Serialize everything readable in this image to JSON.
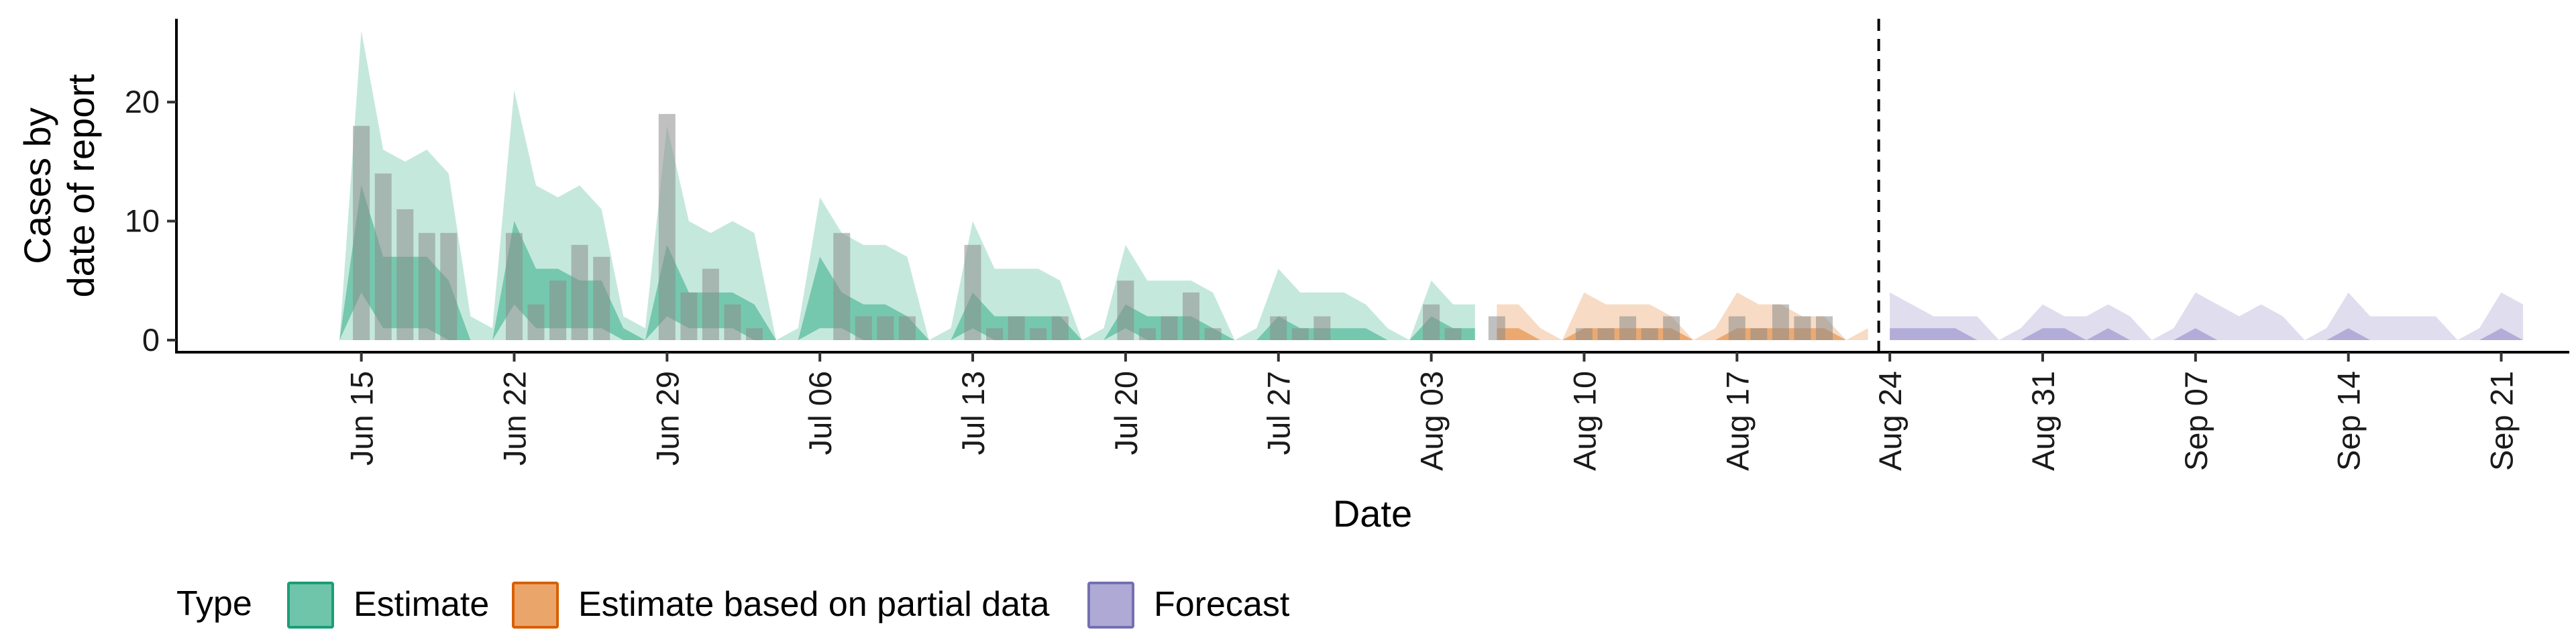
{
  "chart_data": {
    "type": "area",
    "xlabel": "Date",
    "ylabel_lines": [
      "Cases by",
      "date of report"
    ],
    "ylim": [
      0,
      27
    ],
    "yticks": [
      0,
      10,
      20
    ],
    "x_start_date": "2020-06-12",
    "x_end_date": "2020-09-22",
    "x_tick_labels": [
      "Jun 15",
      "Jun 22",
      "Jun 29",
      "Jul 06",
      "Jul 13",
      "Jul 20",
      "Jul 27",
      "Aug 03",
      "Aug 10",
      "Aug 17",
      "Aug 24",
      "Aug 31",
      "Sep 07",
      "Sep 14",
      "Sep 21"
    ],
    "x_tick_dates": [
      "2020-06-15",
      "2020-06-22",
      "2020-06-29",
      "2020-07-06",
      "2020-07-13",
      "2020-07-20",
      "2020-07-27",
      "2020-08-03",
      "2020-08-10",
      "2020-08-17",
      "2020-08-24",
      "2020-08-31",
      "2020-09-07",
      "2020-09-14",
      "2020-09-21"
    ],
    "forecast_line_date": "2020-08-23",
    "legend": {
      "title": "Type",
      "position": "bottom",
      "entries": [
        {
          "name": "Estimate",
          "fill": "#66c2a5",
          "stroke": "#1b9e77"
        },
        {
          "name": "Estimate based on partial data",
          "fill": "#e9a063",
          "stroke": "#d95f02"
        },
        {
          "name": "Forecast",
          "fill": "#aaa5d3",
          "stroke": "#7570b3"
        }
      ]
    },
    "grid": false,
    "observed_cases": {
      "dates": [
        "2020-06-15",
        "2020-06-16",
        "2020-06-17",
        "2020-06-18",
        "2020-06-19",
        "2020-06-22",
        "2020-06-23",
        "2020-06-24",
        "2020-06-25",
        "2020-06-26",
        "2020-06-29",
        "2020-06-30",
        "2020-07-01",
        "2020-07-02",
        "2020-07-03",
        "2020-07-07",
        "2020-07-08",
        "2020-07-09",
        "2020-07-10",
        "2020-07-13",
        "2020-07-14",
        "2020-07-15",
        "2020-07-16",
        "2020-07-17",
        "2020-07-20",
        "2020-07-21",
        "2020-07-22",
        "2020-07-23",
        "2020-07-24",
        "2020-07-27",
        "2020-07-28",
        "2020-07-29",
        "2020-08-03",
        "2020-08-04",
        "2020-08-06",
        "2020-08-10",
        "2020-08-11",
        "2020-08-12",
        "2020-08-13",
        "2020-08-14",
        "2020-08-17",
        "2020-08-18",
        "2020-08-19",
        "2020-08-20",
        "2020-08-21"
      ],
      "values": [
        18,
        14,
        11,
        9,
        9,
        9,
        3,
        5,
        8,
        7,
        19,
        4,
        6,
        3,
        1,
        9,
        2,
        2,
        2,
        8,
        1,
        2,
        1,
        2,
        5,
        1,
        2,
        4,
        1,
        2,
        1,
        2,
        3,
        1,
        2,
        1,
        1,
        2,
        1,
        2,
        2,
        1,
        3,
        2,
        2
      ]
    },
    "series": [
      {
        "name": "Estimate",
        "dates": [
          "2020-06-14",
          "2020-06-15",
          "2020-06-16",
          "2020-06-17",
          "2020-06-18",
          "2020-06-19",
          "2020-06-20",
          "2020-06-21",
          "2020-06-22",
          "2020-06-23",
          "2020-06-24",
          "2020-06-25",
          "2020-06-26",
          "2020-06-27",
          "2020-06-28",
          "2020-06-29",
          "2020-06-30",
          "2020-07-01",
          "2020-07-02",
          "2020-07-03",
          "2020-07-04",
          "2020-07-05",
          "2020-07-06",
          "2020-07-07",
          "2020-07-08",
          "2020-07-09",
          "2020-07-10",
          "2020-07-11",
          "2020-07-12",
          "2020-07-13",
          "2020-07-14",
          "2020-07-15",
          "2020-07-16",
          "2020-07-17",
          "2020-07-18",
          "2020-07-19",
          "2020-07-20",
          "2020-07-21",
          "2020-07-22",
          "2020-07-23",
          "2020-07-24",
          "2020-07-25",
          "2020-07-26",
          "2020-07-27",
          "2020-07-28",
          "2020-07-29",
          "2020-07-30",
          "2020-07-31",
          "2020-08-01",
          "2020-08-02",
          "2020-08-03",
          "2020-08-04",
          "2020-08-05"
        ],
        "outer_upper": [
          0,
          26,
          16,
          15,
          16,
          14,
          2,
          1,
          21,
          13,
          12,
          13,
          11,
          2,
          1,
          18,
          10,
          9,
          10,
          9,
          0,
          1,
          12,
          9,
          8,
          8,
          7,
          0,
          1,
          10,
          6,
          6,
          6,
          5,
          0,
          1,
          8,
          5,
          5,
          5,
          4,
          0,
          1,
          6,
          4,
          4,
          4,
          3,
          1,
          0,
          5,
          3,
          3
        ],
        "outer_lower": [
          0,
          0,
          0,
          0,
          0,
          0,
          0,
          0,
          0,
          0,
          0,
          0,
          0,
          0,
          0,
          0,
          0,
          0,
          0,
          0,
          0,
          0,
          0,
          0,
          0,
          0,
          0,
          0,
          0,
          0,
          0,
          0,
          0,
          0,
          0,
          0,
          0,
          0,
          0,
          0,
          0,
          0,
          0,
          0,
          0,
          0,
          0,
          0,
          0,
          0,
          0,
          0,
          0
        ],
        "inner_upper": [
          0,
          13,
          7,
          7,
          7,
          5,
          0,
          0,
          10,
          6,
          6,
          5,
          5,
          1,
          0,
          8,
          4,
          4,
          4,
          3,
          0,
          0,
          7,
          4,
          3,
          3,
          2,
          0,
          0,
          4,
          2,
          2,
          2,
          2,
          0,
          0,
          3,
          2,
          2,
          2,
          1,
          0,
          0,
          2,
          1,
          1,
          1,
          1,
          0,
          0,
          2,
          1,
          1
        ],
        "inner_lower": [
          0,
          4,
          1,
          1,
          1,
          0,
          0,
          0,
          3,
          1,
          1,
          1,
          1,
          0,
          0,
          2,
          1,
          1,
          1,
          0,
          0,
          0,
          1,
          1,
          0,
          0,
          0,
          0,
          0,
          1,
          0,
          0,
          0,
          0,
          0,
          0,
          1,
          0,
          0,
          0,
          0,
          0,
          0,
          0,
          0,
          0,
          0,
          0,
          0,
          0,
          0,
          0,
          0
        ]
      },
      {
        "name": "Estimate based on partial data",
        "dates": [
          "2020-08-06",
          "2020-08-07",
          "2020-08-08",
          "2020-08-09",
          "2020-08-10",
          "2020-08-11",
          "2020-08-12",
          "2020-08-13",
          "2020-08-14",
          "2020-08-15",
          "2020-08-16",
          "2020-08-17",
          "2020-08-18",
          "2020-08-19",
          "2020-08-20",
          "2020-08-21",
          "2020-08-22",
          "2020-08-23"
        ],
        "outer_upper": [
          3,
          3,
          1,
          0,
          4,
          3,
          3,
          3,
          2,
          0,
          1,
          4,
          3,
          3,
          2,
          2,
          0,
          1
        ],
        "outer_lower": [
          0,
          0,
          0,
          0,
          0,
          0,
          0,
          0,
          0,
          0,
          0,
          0,
          0,
          0,
          0,
          0,
          0,
          0
        ],
        "inner_upper": [
          1,
          1,
          0,
          0,
          1,
          1,
          1,
          1,
          1,
          0,
          0,
          1,
          1,
          1,
          1,
          1,
          0,
          0
        ],
        "inner_lower": [
          0,
          0,
          0,
          0,
          0,
          0,
          0,
          0,
          0,
          0,
          0,
          0,
          0,
          0,
          0,
          0,
          0,
          0
        ]
      },
      {
        "name": "Forecast",
        "dates": [
          "2020-08-24",
          "2020-08-25",
          "2020-08-26",
          "2020-08-27",
          "2020-08-28",
          "2020-08-29",
          "2020-08-30",
          "2020-08-31",
          "2020-09-01",
          "2020-09-02",
          "2020-09-03",
          "2020-09-04",
          "2020-09-05",
          "2020-09-06",
          "2020-09-07",
          "2020-09-08",
          "2020-09-09",
          "2020-09-10",
          "2020-09-11",
          "2020-09-12",
          "2020-09-13",
          "2020-09-14",
          "2020-09-15",
          "2020-09-16",
          "2020-09-17",
          "2020-09-18",
          "2020-09-19",
          "2020-09-20",
          "2020-09-21",
          "2020-09-22"
        ],
        "outer_upper": [
          4,
          3,
          2,
          2,
          2,
          0,
          1,
          3,
          2,
          2,
          3,
          2,
          0,
          1,
          4,
          3,
          2,
          3,
          2,
          0,
          1,
          4,
          2,
          2,
          2,
          2,
          0,
          1,
          4,
          3
        ],
        "outer_lower": [
          0,
          0,
          0,
          0,
          0,
          0,
          0,
          0,
          0,
          0,
          0,
          0,
          0,
          0,
          0,
          0,
          0,
          0,
          0,
          0,
          0,
          0,
          0,
          0,
          0,
          0,
          0,
          0,
          0,
          0
        ],
        "inner_upper": [
          1,
          1,
          1,
          1,
          0,
          0,
          0,
          1,
          1,
          0,
          1,
          0,
          0,
          0,
          1,
          0,
          0,
          0,
          0,
          0,
          0,
          1,
          0,
          0,
          0,
          0,
          0,
          0,
          1,
          0
        ],
        "inner_lower": [
          0,
          0,
          0,
          0,
          0,
          0,
          0,
          0,
          0,
          0,
          0,
          0,
          0,
          0,
          0,
          0,
          0,
          0,
          0,
          0,
          0,
          0,
          0,
          0,
          0,
          0,
          0,
          0,
          0,
          0
        ]
      }
    ]
  }
}
